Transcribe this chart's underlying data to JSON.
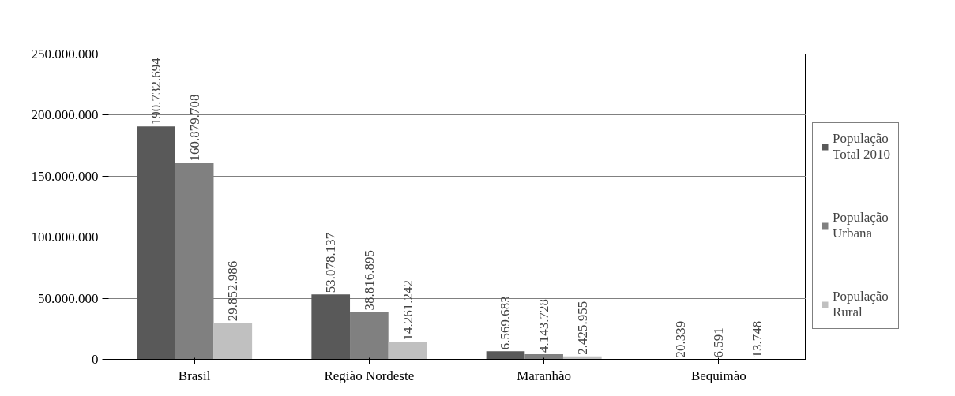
{
  "chart_data": {
    "type": "bar",
    "categories": [
      "Brasil",
      "Região Nordeste",
      "Maranhão",
      "Bequimão"
    ],
    "series": [
      {
        "name": "População Total 2010",
        "color": "#595959",
        "values": [
          190732694,
          53078137,
          6569683,
          20339
        ],
        "value_labels": [
          "190.732.694",
          "53.078.137",
          "6.569.683",
          "20.339"
        ]
      },
      {
        "name": "População Urbana",
        "color": "#808080",
        "values": [
          160879708,
          38816895,
          4143728,
          6591
        ],
        "value_labels": [
          "160.879.708",
          "38.816.895",
          "4.143.728",
          "6.591"
        ]
      },
      {
        "name": "População Rural",
        "color": "#c0c0c0",
        "values": [
          29852986,
          14261242,
          2425955,
          13748
        ],
        "value_labels": [
          "29.852.986",
          "14.261.242",
          "2.425.955",
          "13.748"
        ]
      }
    ],
    "ylim": [
      0,
      250000000
    ],
    "yticks": [
      0,
      {
        "value": 50000000,
        "label": "50.000.000"
      },
      {
        "value": 100000000,
        "label": "100.000.000"
      },
      {
        "value": 150000000,
        "label": "150.000.000"
      },
      {
        "value": 200000000,
        "label": "200.000.000"
      },
      {
        "value": 250000000,
        "label": "250.000.000"
      }
    ],
    "grid": "y",
    "legend": "right"
  }
}
